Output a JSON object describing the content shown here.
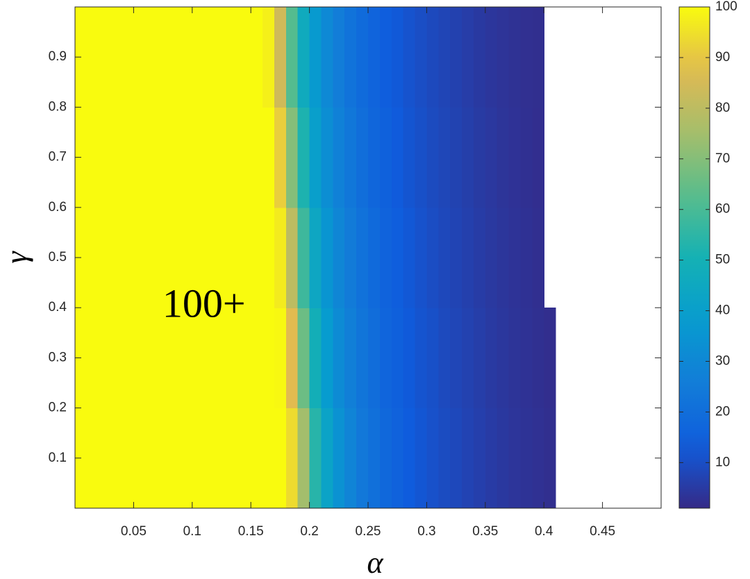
{
  "chart_data": {
    "type": "heatmap",
    "xlabel": "α",
    "ylabel": "γ",
    "colormap": "parula",
    "xlim": [
      0,
      0.5
    ],
    "ylim": [
      0,
      1
    ],
    "xticks": [
      0.05,
      0.1,
      0.15,
      0.2,
      0.25,
      0.3,
      0.35,
      0.4,
      0.45
    ],
    "yticks": [
      0.1,
      0.2,
      0.3,
      0.4,
      0.5,
      0.6,
      0.7,
      0.8,
      0.9
    ],
    "colorbar": {
      "lim": [
        1,
        100
      ],
      "ticks": [
        10,
        20,
        30,
        40,
        50,
        60,
        70,
        80,
        90,
        100
      ]
    },
    "annotation": {
      "text": "100+",
      "x": 0.11,
      "y": 0.4
    },
    "x": [
      0.005,
      0.015,
      0.025,
      0.035,
      0.045,
      0.055,
      0.065,
      0.075,
      0.085,
      0.095,
      0.105,
      0.115,
      0.125,
      0.135,
      0.145,
      0.155,
      0.165,
      0.175,
      0.185,
      0.195,
      0.205,
      0.215,
      0.225,
      0.235,
      0.245,
      0.255,
      0.265,
      0.275,
      0.285,
      0.295,
      0.305,
      0.315,
      0.325,
      0.335,
      0.345,
      0.355,
      0.365,
      0.375,
      0.385,
      0.395,
      0.405,
      0.415,
      0.425,
      0.435,
      0.445,
      0.455,
      0.465,
      0.475,
      0.485,
      0.495
    ],
    "y": [
      0.1,
      0.3,
      0.5,
      0.7,
      0.9
    ],
    "z": [
      [
        100,
        100,
        100,
        100,
        100,
        100,
        100,
        100,
        100,
        100,
        100,
        100,
        100,
        100,
        100,
        100,
        100,
        100,
        94,
        75,
        54,
        42,
        34,
        28.5,
        24,
        21,
        18,
        15.5,
        13.5,
        12,
        10.6,
        9.4,
        8.5,
        7.3,
        6.3,
        5.3,
        4.5,
        3.7,
        3.2,
        2.7,
        2.2,
        null,
        null,
        null,
        null,
        null,
        null,
        null,
        null,
        null
      ],
      [
        100,
        100,
        100,
        100,
        100,
        100,
        100,
        100,
        100,
        100,
        100,
        100,
        100,
        100,
        100,
        100,
        100,
        99.5,
        88,
        66,
        49,
        38,
        31.5,
        26.5,
        22.7,
        19.7,
        16.8,
        14.8,
        12.9,
        11.4,
        10.3,
        8.9,
        7.9,
        6.9,
        5.9,
        4.9,
        4.2,
        3.5,
        3,
        2.5,
        2,
        null,
        null,
        null,
        null,
        null,
        null,
        null,
        null,
        null
      ],
      [
        100,
        100,
        100,
        100,
        100,
        100,
        100,
        100,
        100,
        100,
        100,
        100,
        100,
        100,
        100,
        100,
        100,
        97,
        80,
        58,
        44,
        35.5,
        29.5,
        25,
        21.5,
        18.5,
        16,
        14,
        12.3,
        10.9,
        9.6,
        8.5,
        7.5,
        6.5,
        5.5,
        4.6,
        3.9,
        3.3,
        2.8,
        2.3,
        null,
        null,
        null,
        null,
        null,
        null,
        null,
        null,
        null,
        null
      ],
      [
        100,
        100,
        100,
        100,
        100,
        100,
        100,
        100,
        100,
        100,
        100,
        100,
        100,
        100,
        100,
        100,
        100,
        91.5,
        70,
        52,
        40,
        32.5,
        27.5,
        23.5,
        20.3,
        17.3,
        15.2,
        13.2,
        11.7,
        10.4,
        9.1,
        8.1,
        7.1,
        6.1,
        5.1,
        4.4,
        3.6,
        3.1,
        2.6,
        2.1,
        null,
        null,
        null,
        null,
        null,
        null,
        null,
        null,
        null,
        null
      ],
      [
        100,
        100,
        100,
        100,
        100,
        100,
        100,
        100,
        100,
        100,
        100,
        100,
        100,
        100,
        100,
        100,
        98,
        84,
        62,
        46.5,
        37.5,
        30.5,
        25.8,
        22,
        19,
        16.3,
        14.3,
        12.6,
        11.2,
        9.9,
        8.7,
        7.7,
        6.7,
        5.7,
        4.8,
        4,
        3.4,
        2.9,
        2.4,
        2.2,
        null,
        null,
        null,
        null,
        null,
        null,
        null,
        null,
        null,
        null
      ]
    ]
  }
}
